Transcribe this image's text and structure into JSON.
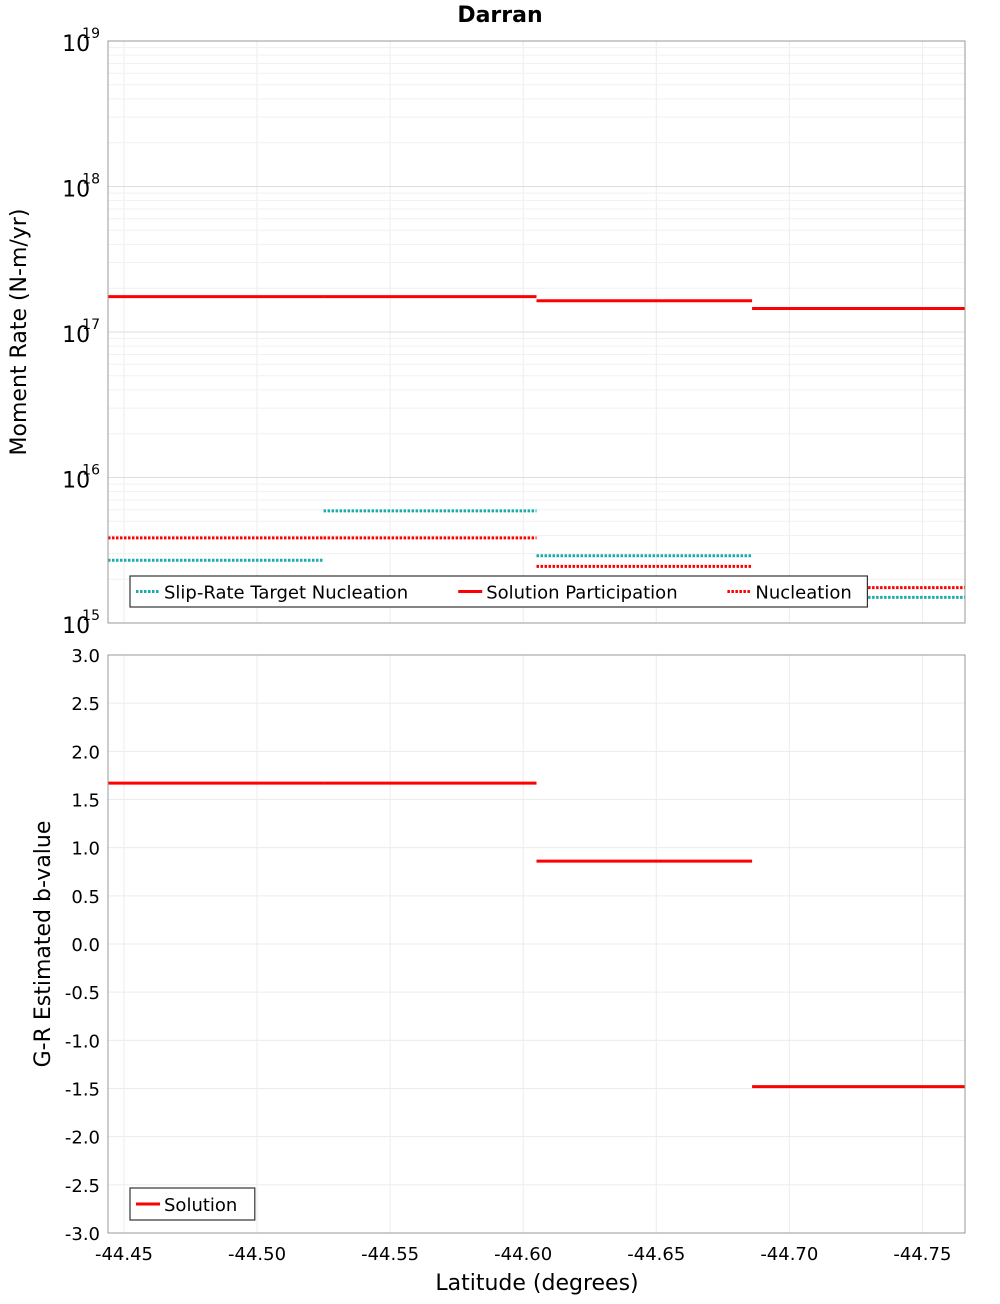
{
  "chart_data": [
    {
      "type": "line",
      "title": "Darran",
      "ylabel": "Moment Rate (N-m/yr)",
      "xlabel": "",
      "yscale": "log",
      "ylim": [
        1000000000000000.0,
        1e+19
      ],
      "xlim": [
        -44.444,
        -44.766
      ],
      "y_tick_labels": [
        {
          "base": "10",
          "exp": "15"
        },
        {
          "base": "10",
          "exp": "16"
        },
        {
          "base": "10",
          "exp": "17"
        },
        {
          "base": "10",
          "exp": "18"
        },
        {
          "base": "10",
          "exp": "19"
        }
      ],
      "legend": {
        "position": "bottom-left",
        "entries": [
          {
            "label": "Slip-Rate Target Nucleation",
            "color": "#1aacac",
            "style": "dotted"
          },
          {
            "label": "Solution Participation",
            "color": "#ff0000",
            "style": "solid"
          },
          {
            "label": "Nucleation",
            "color": "#ff0000",
            "style": "dotted"
          }
        ]
      },
      "series": [
        {
          "name": "Slip-Rate Target Nucleation",
          "color": "#1aacac",
          "style": "dotted",
          "segments": [
            {
              "x0": -44.444,
              "x1": -44.525,
              "y": 2700000000000000.0
            },
            {
              "x0": -44.525,
              "x1": -44.605,
              "y": 5900000000000000.0
            },
            {
              "x0": -44.605,
              "x1": -44.686,
              "y": 2900000000000000.0
            },
            {
              "x0": -44.686,
              "x1": -44.766,
              "y": 1500000000000000.0
            }
          ]
        },
        {
          "name": "Solution Participation",
          "color": "#ff0000",
          "style": "solid",
          "segments": [
            {
              "x0": -44.444,
              "x1": -44.525,
              "y": 1.75e+17
            },
            {
              "x0": -44.525,
              "x1": -44.605,
              "y": 1.75e+17
            },
            {
              "x0": -44.605,
              "x1": -44.686,
              "y": 1.64e+17
            },
            {
              "x0": -44.686,
              "x1": -44.766,
              "y": 1.45e+17
            }
          ]
        },
        {
          "name": "Nucleation",
          "color": "#ff0000",
          "style": "dotted",
          "segments": [
            {
              "x0": -44.444,
              "x1": -44.525,
              "y": 3850000000000000.0
            },
            {
              "x0": -44.525,
              "x1": -44.605,
              "y": 3850000000000000.0
            },
            {
              "x0": -44.605,
              "x1": -44.686,
              "y": 2450000000000000.0
            },
            {
              "x0": -44.686,
              "x1": -44.766,
              "y": 1750000000000000.0
            }
          ]
        }
      ]
    },
    {
      "type": "line",
      "title": "",
      "ylabel": "G-R Estimated b-value",
      "xlabel": "Latitude (degrees)",
      "ylim": [
        -3.0,
        3.0
      ],
      "xlim": [
        -44.444,
        -44.766
      ],
      "y_ticks": [
        -3.0,
        -2.5,
        -2.0,
        -1.5,
        -1.0,
        -0.5,
        0.0,
        0.5,
        1.0,
        1.5,
        2.0,
        2.5,
        3.0
      ],
      "y_tick_labels": [
        "-3.0",
        "-2.5",
        "-2.0",
        "-1.5",
        "-1.0",
        "-0.5",
        "0.0",
        "0.5",
        "1.0",
        "1.5",
        "2.0",
        "2.5",
        "3.0"
      ],
      "x_ticks": [
        -44.45,
        -44.5,
        -44.55,
        -44.6,
        -44.65,
        -44.7,
        -44.75
      ],
      "x_tick_labels": [
        "-44.45",
        "-44.50",
        "-44.55",
        "-44.60",
        "-44.65",
        "-44.70",
        "-44.75"
      ],
      "legend": {
        "position": "bottom-left",
        "entries": [
          {
            "label": "Solution",
            "color": "#ff0000",
            "style": "solid"
          }
        ]
      },
      "series": [
        {
          "name": "Solution",
          "color": "#ff0000",
          "style": "solid",
          "segments": [
            {
              "x0": -44.444,
              "x1": -44.525,
              "y": 1.67
            },
            {
              "x0": -44.525,
              "x1": -44.605,
              "y": 1.67
            },
            {
              "x0": -44.605,
              "x1": -44.686,
              "y": 0.86
            },
            {
              "x0": -44.686,
              "x1": -44.766,
              "y": -1.48
            }
          ]
        }
      ]
    }
  ]
}
